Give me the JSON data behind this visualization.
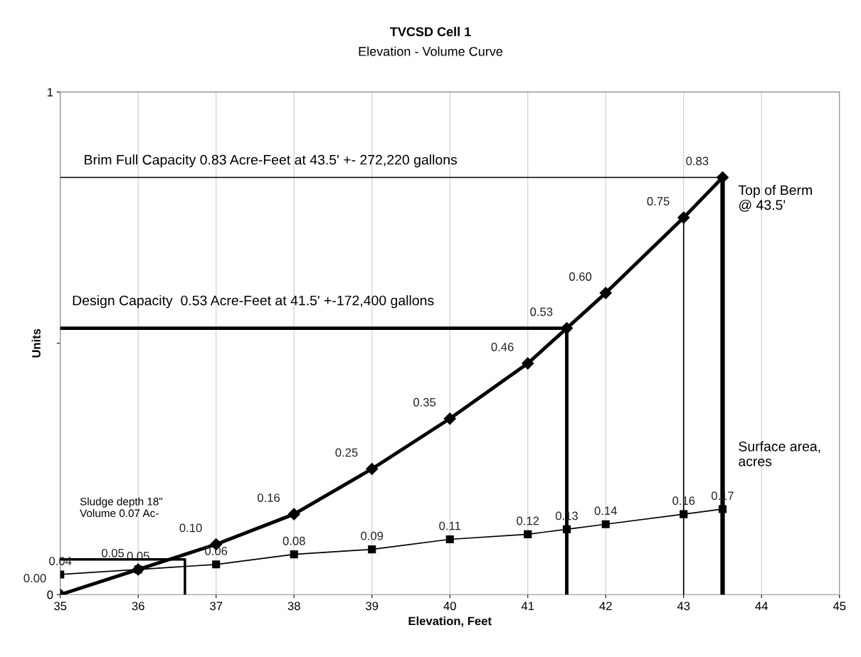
{
  "chart_data": {
    "type": "line",
    "title": "TVCSD Cell 1",
    "subtitle": "Elevation - Volume Curve",
    "xlabel": "Elevation, Feet",
    "ylabel": "Units",
    "xlim": [
      35,
      45
    ],
    "xticks": [
      35,
      36,
      37,
      38,
      39,
      40,
      41,
      42,
      43,
      44,
      45
    ],
    "ylim": [
      0,
      1
    ],
    "yticks": [
      0,
      {
        "value": 0.5,
        "label": null
      },
      1
    ],
    "grid": "x",
    "legend": false,
    "series": [
      {
        "color": "#000000",
        "marker": "diamond",
        "x": [
          35,
          36,
          37,
          38,
          39,
          40,
          41,
          41.5,
          42,
          43,
          43.5
        ],
        "values": [
          0.0,
          0.05,
          0.1,
          0.16,
          0.25,
          0.35,
          0.46,
          0.53,
          0.6,
          0.75,
          0.83
        ],
        "value_labels": [
          "0.00",
          "0.05",
          "0.10",
          "0.16",
          "0.25",
          "0.35",
          "0.46",
          "0.53",
          "0.60",
          "0.75",
          "0.83"
        ]
      },
      {
        "color": "#000000",
        "marker": "square",
        "x": [
          35,
          36,
          37,
          38,
          39,
          40,
          41,
          41.5,
          42,
          43,
          43.5
        ],
        "values": [
          0.04,
          0.05,
          0.06,
          0.08,
          0.09,
          0.11,
          0.12,
          0.13,
          0.14,
          0.16,
          0.17
        ],
        "value_labels": [
          "0.04",
          "0.05",
          "0.06",
          "0.08",
          "0.09",
          "0.11",
          "0.12",
          "0.13",
          "0.14",
          "0.16",
          "0.17"
        ]
      },
      {
        "color": "#000000",
        "marker": "none",
        "x": [
          35,
          43.5
        ],
        "values": [
          0.83,
          0.83
        ]
      },
      {
        "color": "#000000",
        "marker": "none",
        "x": [
          35,
          41.5,
          41.5
        ],
        "values": [
          0.53,
          0.53,
          0
        ]
      },
      {
        "color": "#000000",
        "marker": "none",
        "x": [
          35,
          36.6,
          36.6
        ],
        "values": [
          0.07,
          0.07,
          0
        ]
      },
      {
        "color": "#000000",
        "marker": "none",
        "x": [
          43,
          43
        ],
        "values": [
          0.75,
          0
        ]
      },
      {
        "color": "#000000",
        "marker": "none",
        "x": [
          43.5,
          43.5
        ],
        "values": [
          0.83,
          0
        ]
      }
    ],
    "annotations": [
      "Brim Full Capacity 0.83 Acre-Feet at 43.5' +- 272,220 gallons",
      "Design Capacity  0.53 Acre-Feet at 41.5' +-172,400 gallons",
      "Top of Berm\n@ 43.5'",
      "Surface area,\nacres",
      "Sludge depth 18\"\nVolume 0.07 Ac-"
    ]
  }
}
